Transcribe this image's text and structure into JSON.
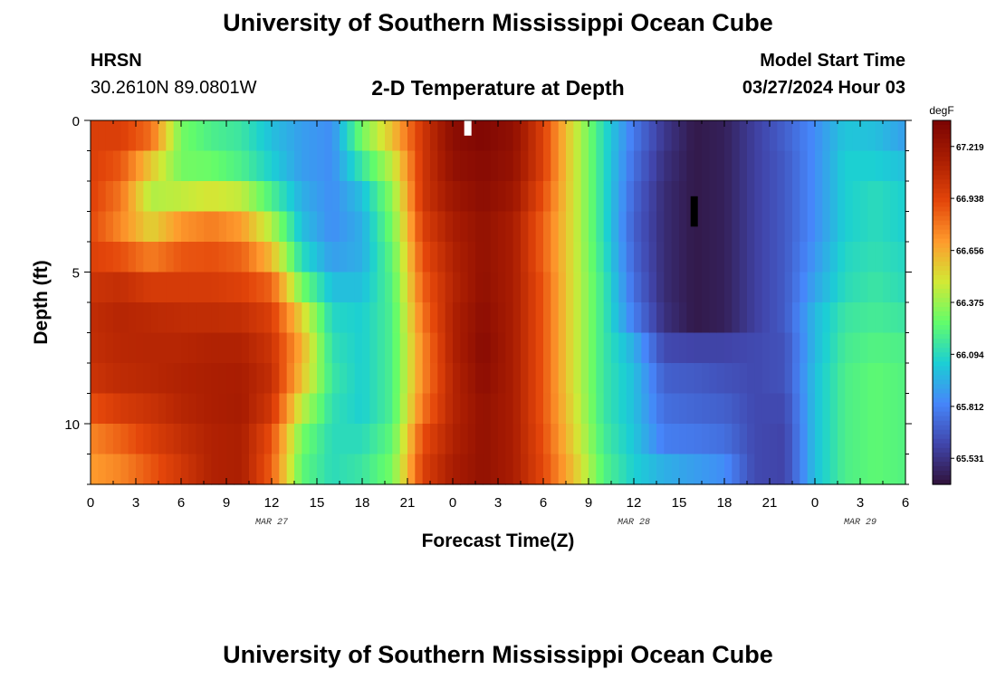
{
  "header": {
    "title": "University of Southern Mississippi Ocean Cube",
    "station": "HRSN",
    "coordinates": "30.2610N  89.0801W",
    "subtitle": "2-D Temperature at Depth",
    "start_label": "Model Start Time",
    "start_value": "03/27/2024 Hour 03"
  },
  "footer": {
    "title": "University of Southern Mississippi Ocean Cube"
  },
  "chart_data": {
    "type": "heatmap",
    "title": "2-D Temperature at Depth",
    "xlabel": "Forecast Time(Z)",
    "ylabel": "Depth (ft)",
    "x_range_hours": [
      0,
      54
    ],
    "y_range_ft": [
      0,
      12
    ],
    "x_ticks": [
      {
        "hour": 0,
        "label": "0"
      },
      {
        "hour": 3,
        "label": "3"
      },
      {
        "hour": 6,
        "label": "6"
      },
      {
        "hour": 9,
        "label": "9"
      },
      {
        "hour": 12,
        "label": "12"
      },
      {
        "hour": 15,
        "label": "15"
      },
      {
        "hour": 18,
        "label": "18"
      },
      {
        "hour": 21,
        "label": "21"
      },
      {
        "hour": 24,
        "label": "0"
      },
      {
        "hour": 27,
        "label": "3"
      },
      {
        "hour": 30,
        "label": "6"
      },
      {
        "hour": 33,
        "label": "9"
      },
      {
        "hour": 36,
        "label": "12"
      },
      {
        "hour": 39,
        "label": "15"
      },
      {
        "hour": 42,
        "label": "18"
      },
      {
        "hour": 45,
        "label": "21"
      },
      {
        "hour": 48,
        "label": "0"
      },
      {
        "hour": 51,
        "label": "3"
      },
      {
        "hour": 54,
        "label": "6"
      }
    ],
    "date_labels": [
      {
        "hour": 12,
        "label": "MAR 27"
      },
      {
        "hour": 36,
        "label": "MAR 28"
      },
      {
        "hour": 51,
        "label": "MAR 29"
      }
    ],
    "y_ticks": [
      {
        "depth": 0,
        "label": "0"
      },
      {
        "depth": 5,
        "label": "5"
      },
      {
        "depth": 10,
        "label": "10"
      }
    ],
    "colorbar": {
      "unit": "degF",
      "min": 65.39,
      "max": 67.36,
      "ticks": [
        67.219,
        66.938,
        66.656,
        66.375,
        66.094,
        65.812,
        65.531
      ],
      "tick_labels": [
        "67.219",
        "66.938",
        "66.656",
        "66.375",
        "66.094",
        "65.812",
        "65.531"
      ],
      "colors": [
        "#30123b",
        "#4146ac",
        "#4686fa",
        "#1bcfd4",
        "#62fc6b",
        "#d2e935",
        "#fe9b2d",
        "#e4460a",
        "#ab1e02",
        "#7a0403"
      ]
    },
    "markers": [
      {
        "hour": 25,
        "depth_from": 0,
        "depth_to": 0.5,
        "color": "#ffffff"
      },
      {
        "hour": 40,
        "depth_from": 2.5,
        "depth_to": 3.5,
        "color": "#000000"
      }
    ],
    "columns": [
      {
        "hour": 0,
        "profile": [
          66.96,
          66.96,
          66.95,
          66.92,
          66.95,
          67.02,
          67.06,
          67.05,
          67.02,
          66.9,
          66.76,
          66.7
        ]
      },
      {
        "hour": 2,
        "profile": [
          66.96,
          66.88,
          66.8,
          66.75,
          66.9,
          67.05,
          67.1,
          67.09,
          67.07,
          66.98,
          66.85,
          66.76
        ]
      },
      {
        "hour": 4,
        "profile": [
          66.82,
          66.58,
          66.42,
          66.55,
          66.78,
          66.98,
          67.08,
          67.1,
          67.09,
          67.03,
          66.96,
          66.88
        ]
      },
      {
        "hour": 6,
        "profile": [
          66.3,
          66.3,
          66.45,
          66.72,
          66.88,
          66.98,
          67.06,
          67.1,
          67.12,
          67.1,
          67.05,
          67.0
        ]
      },
      {
        "hour": 8,
        "profile": [
          66.2,
          66.28,
          66.5,
          66.78,
          66.9,
          66.98,
          67.06,
          67.12,
          67.14,
          67.14,
          67.12,
          67.12
        ]
      },
      {
        "hour": 10,
        "profile": [
          66.15,
          66.2,
          66.45,
          66.7,
          66.85,
          66.95,
          67.05,
          67.12,
          67.15,
          67.16,
          67.14,
          67.14
        ]
      },
      {
        "hour": 12,
        "profile": [
          66.0,
          66.05,
          66.2,
          66.42,
          66.62,
          66.85,
          66.96,
          67.02,
          67.05,
          67.0,
          66.9,
          66.86
        ]
      },
      {
        "hour": 14,
        "profile": [
          65.9,
          65.9,
          65.95,
          66.0,
          66.1,
          66.3,
          66.55,
          66.65,
          66.6,
          66.45,
          66.3,
          66.25
        ]
      },
      {
        "hour": 16,
        "profile": [
          65.85,
          65.85,
          65.85,
          65.85,
          65.9,
          66.0,
          66.08,
          66.12,
          66.15,
          66.12,
          66.1,
          66.1
        ]
      },
      {
        "hour": 18,
        "profile": [
          66.3,
          66.15,
          66.0,
          65.95,
          65.95,
          66.0,
          66.05,
          66.05,
          66.05,
          66.05,
          66.1,
          66.15
        ]
      },
      {
        "hour": 20,
        "profile": [
          66.6,
          66.45,
          66.35,
          66.3,
          66.25,
          66.22,
          66.2,
          66.2,
          66.2,
          66.2,
          66.25,
          66.3
        ]
      },
      {
        "hour": 22,
        "profile": [
          67.0,
          67.0,
          67.0,
          66.95,
          66.9,
          66.85,
          66.8,
          66.75,
          66.75,
          66.8,
          66.9,
          66.95
        ]
      },
      {
        "hour": 24,
        "profile": [
          67.28,
          67.25,
          67.2,
          67.15,
          67.12,
          67.1,
          67.12,
          67.12,
          67.1,
          67.1,
          67.12,
          67.15
        ]
      },
      {
        "hour": 26,
        "profile": [
          67.33,
          67.3,
          67.28,
          67.25,
          67.25,
          67.26,
          67.28,
          67.3,
          67.28,
          67.25,
          67.25,
          67.25
        ]
      },
      {
        "hour": 28,
        "profile": [
          67.26,
          67.24,
          67.2,
          67.15,
          67.15,
          67.15,
          67.15,
          67.15,
          67.15,
          67.15,
          67.15,
          67.15
        ]
      },
      {
        "hour": 30,
        "profile": [
          66.95,
          66.95,
          66.9,
          66.85,
          66.85,
          66.88,
          66.88,
          66.88,
          66.88,
          66.88,
          66.9,
          66.92
        ]
      },
      {
        "hour": 32,
        "profile": [
          66.5,
          66.5,
          66.5,
          66.5,
          66.5,
          66.5,
          66.5,
          66.5,
          66.5,
          66.52,
          66.55,
          66.6
        ]
      },
      {
        "hour": 34,
        "profile": [
          66.1,
          66.1,
          66.1,
          66.1,
          66.12,
          66.15,
          66.15,
          66.15,
          66.15,
          66.15,
          66.18,
          66.22
        ]
      },
      {
        "hour": 36,
        "profile": [
          65.78,
          65.75,
          65.72,
          65.7,
          65.72,
          65.75,
          65.8,
          65.95,
          66.0,
          66.0,
          66.02,
          66.05
        ]
      },
      {
        "hour": 38,
        "profile": [
          65.55,
          65.52,
          65.5,
          65.5,
          65.5,
          65.5,
          65.52,
          65.62,
          65.7,
          65.75,
          65.8,
          65.95
        ]
      },
      {
        "hour": 40,
        "profile": [
          65.42,
          65.42,
          65.42,
          65.42,
          65.42,
          65.42,
          65.42,
          65.6,
          65.68,
          65.72,
          65.78,
          65.9
        ]
      },
      {
        "hour": 42,
        "profile": [
          65.45,
          65.45,
          65.45,
          65.45,
          65.45,
          65.45,
          65.45,
          65.6,
          65.65,
          65.7,
          65.75,
          65.85
        ]
      },
      {
        "hour": 44,
        "profile": [
          65.58,
          65.58,
          65.58,
          65.58,
          65.58,
          65.58,
          65.58,
          65.62,
          65.62,
          65.62,
          65.62,
          65.62
        ]
      },
      {
        "hour": 46,
        "profile": [
          65.7,
          65.68,
          65.68,
          65.68,
          65.68,
          65.68,
          65.68,
          65.65,
          65.65,
          65.62,
          65.6,
          65.6
        ]
      },
      {
        "hour": 48,
        "profile": [
          65.85,
          65.85,
          65.85,
          65.85,
          65.88,
          65.92,
          65.98,
          65.98,
          66.0,
          66.0,
          66.0,
          66.0
        ]
      },
      {
        "hour": 50,
        "profile": [
          66.02,
          66.05,
          66.05,
          66.05,
          66.08,
          66.1,
          66.15,
          66.18,
          66.2,
          66.2,
          66.2,
          66.2
        ]
      },
      {
        "hour": 52,
        "profile": [
          66.0,
          66.05,
          66.1,
          66.1,
          66.12,
          66.15,
          66.18,
          66.22,
          66.25,
          66.25,
          66.25,
          66.25
        ]
      },
      {
        "hour": 54,
        "profile": [
          65.9,
          66.0,
          66.05,
          66.05,
          66.08,
          66.1,
          66.15,
          66.2,
          66.22,
          66.22,
          66.22,
          66.22
        ]
      }
    ]
  }
}
